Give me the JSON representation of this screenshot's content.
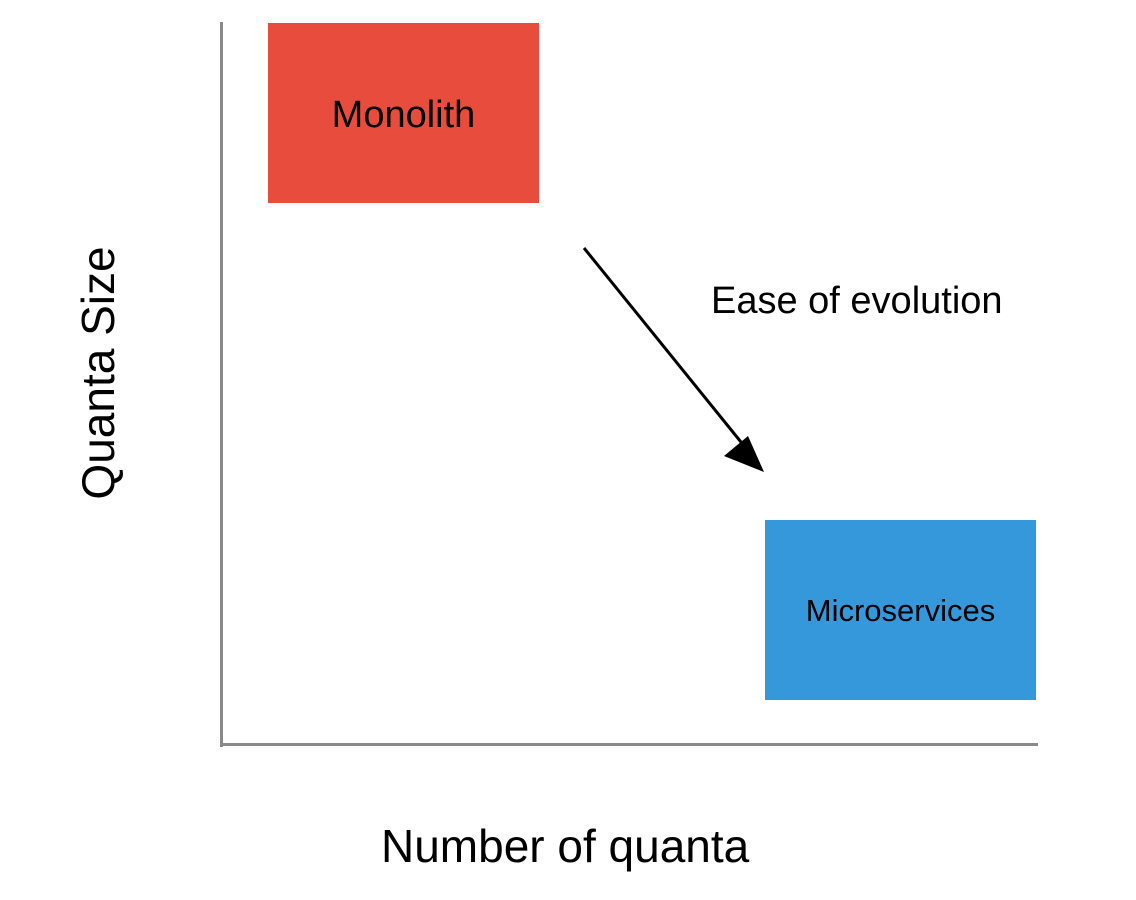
{
  "diagram": {
    "y_axis_label": "Quanta Size",
    "x_axis_label": "Number of quanta",
    "nodes": [
      {
        "id": "monolith",
        "label": "Monolith",
        "color": "#e74c3c"
      },
      {
        "id": "microservices",
        "label": "Microservices",
        "color": "#3498db"
      }
    ],
    "arrow": {
      "from": "monolith",
      "to": "microservices",
      "label": "Ease of evolution"
    }
  }
}
